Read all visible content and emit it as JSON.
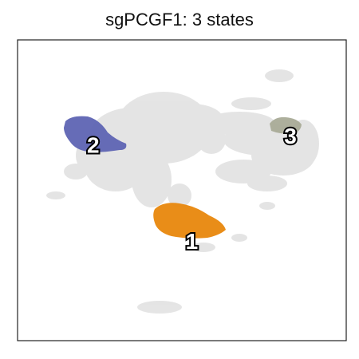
{
  "chart_data": {
    "type": "scatter",
    "title": "sgPCGF1: 3 states",
    "xlabel": "",
    "ylabel": "",
    "grid": false,
    "axes_ticks": false,
    "background_color": "#dcdcdc",
    "states": [
      {
        "label": "1",
        "color": "#e8870c",
        "x": 0.53,
        "y": 0.33
      },
      {
        "label": "2",
        "color": "#5e64b3",
        "x": 0.23,
        "y": 0.65
      },
      {
        "label": "3",
        "color": "#a9ab97",
        "x": 0.83,
        "y": 0.68
      }
    ]
  }
}
